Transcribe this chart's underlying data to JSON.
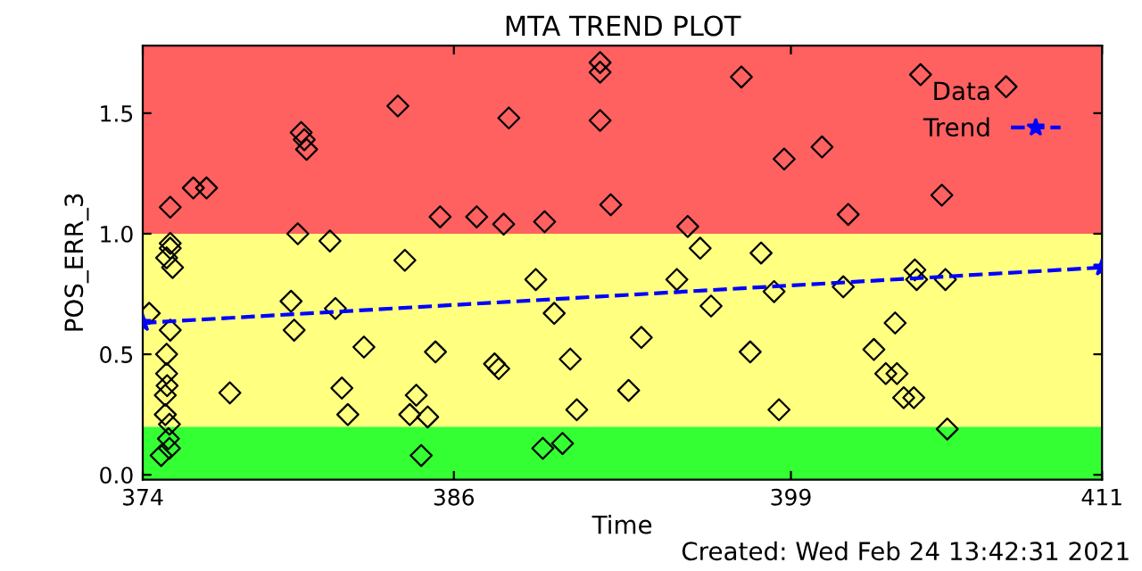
{
  "chart_data": {
    "type": "scatter",
    "title": "MTA TREND PLOT",
    "xlabel": "Time",
    "ylabel": "POS_ERR_3",
    "annotations": [
      "Created: Wed Feb 24 13:42:31 2021"
    ],
    "xlim": [
      374,
      411
    ],
    "xticks": [
      374,
      386,
      399,
      411
    ],
    "ylim": [
      -0.02,
      1.78
    ],
    "yticks": [
      {
        "value": 0,
        "label": "0.0"
      },
      {
        "value": 0.5,
        "label": "0.5"
      },
      {
        "value": 1.0,
        "label": "1.0"
      },
      {
        "value": 1.5,
        "label": "1.5"
      }
    ],
    "bands": [
      {
        "axis": "y",
        "from": -0.02,
        "to": 0.2,
        "color": "#33ff33"
      },
      {
        "axis": "y",
        "from": 0.2,
        "to": 1.0,
        "color": "#ffff80"
      },
      {
        "axis": "y",
        "from": 1.0,
        "to": 1.78,
        "color": "#ff6060"
      }
    ],
    "legend": "top right",
    "grid": false,
    "series": [
      {
        "name": "Data",
        "marker": "diamond",
        "color": "#000000",
        "x": [
          383.84,
          380.11,
          380.23,
          380.32,
          375.95,
          376.46,
          375.06,
          385.47,
          379.98,
          381.22,
          375.06,
          375.06,
          374.92,
          375.15,
          384.11,
          379.72,
          374.25,
          381.43,
          375.06,
          379.84,
          374.92,
          382.53,
          385.29,
          374.92,
          374.94,
          374.87,
          377.36,
          381.68,
          384.55,
          374.87,
          381.91,
          384.3,
          384.99,
          375.03,
          374.99,
          375.03,
          374.71,
          384.74,
          391.64,
          391.64,
          397.09,
          388.12,
          391.64,
          398.74,
          392.05,
          386.88,
          387.92,
          389.5,
          395.02,
          395.5,
          397.85,
          389.16,
          394.6,
          398.35,
          389.87,
          395.92,
          393.23,
          397.43,
          387.57,
          387.73,
          390.49,
          392.74,
          390.74,
          398.54,
          389.43,
          390.19,
          404.0,
          407.3,
          400.2,
          401.21,
          404.82,
          403.78,
          403.85,
          404.96,
          401.02,
          403.02,
          402.2,
          402.66,
          403.09,
          403.35,
          403.74,
          405.03
        ],
        "values": [
          1.53,
          1.42,
          1.39,
          1.35,
          1.19,
          1.19,
          1.11,
          1.07,
          1.0,
          0.97,
          0.96,
          0.94,
          0.9,
          0.86,
          0.89,
          0.72,
          0.67,
          0.69,
          0.6,
          0.6,
          0.5,
          0.53,
          0.51,
          0.42,
          0.37,
          0.33,
          0.34,
          0.36,
          0.33,
          0.25,
          0.25,
          0.25,
          0.24,
          0.21,
          0.15,
          0.11,
          0.08,
          0.08,
          1.71,
          1.67,
          1.65,
          1.48,
          1.47,
          1.31,
          1.12,
          1.07,
          1.04,
          1.05,
          1.03,
          0.94,
          0.92,
          0.81,
          0.81,
          0.76,
          0.67,
          0.7,
          0.57,
          0.51,
          0.46,
          0.44,
          0.48,
          0.35,
          0.27,
          0.27,
          0.11,
          0.13,
          1.66,
          1.61,
          1.36,
          1.08,
          1.16,
          0.85,
          0.81,
          0.81,
          0.78,
          0.63,
          0.52,
          0.42,
          0.42,
          0.32,
          0.32,
          0.19
        ]
      },
      {
        "name": "Trend",
        "type": "line",
        "marker": "star",
        "line_style": "dashed",
        "color": "#0000ff",
        "x": [
          374,
          411
        ],
        "values": [
          0.63,
          0.86
        ]
      }
    ]
  }
}
